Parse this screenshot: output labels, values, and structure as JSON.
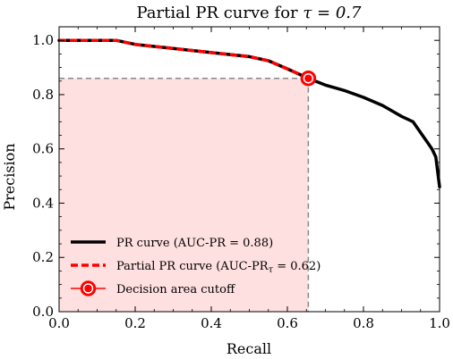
{
  "chart_data": {
    "type": "line",
    "title_prefix": "Partial PR curve for ",
    "title_math": "τ = 0.7",
    "xlabel": "Recall",
    "ylabel": "Precision",
    "xlim": [
      0.0,
      1.0
    ],
    "ylim": [
      0.0,
      1.05
    ],
    "x_ticks": [
      0.0,
      0.2,
      0.4,
      0.6,
      0.8,
      1.0
    ],
    "x_tick_labels": [
      "0.0",
      "0.2",
      "0.4",
      "0.6",
      "0.8",
      "1.0"
    ],
    "y_ticks": [
      0.0,
      0.2,
      0.4,
      0.6,
      0.8,
      1.0
    ],
    "y_tick_labels": [
      "0.0",
      "0.2",
      "0.4",
      "0.6",
      "0.8",
      "1.0"
    ],
    "grid": false,
    "legend_position": "lower-left",
    "series": [
      {
        "name": "PR curve (AUC-PR = 0.88)",
        "style": "solid",
        "color": "#000000",
        "x": [
          0.0,
          0.15,
          0.2,
          0.3,
          0.4,
          0.5,
          0.55,
          0.6,
          0.655,
          0.7,
          0.75,
          0.8,
          0.85,
          0.9,
          0.93,
          0.95,
          0.97,
          0.98,
          0.99,
          1.0
        ],
        "y": [
          1.0,
          1.0,
          0.985,
          0.97,
          0.955,
          0.94,
          0.925,
          0.895,
          0.86,
          0.835,
          0.815,
          0.79,
          0.76,
          0.72,
          0.7,
          0.66,
          0.62,
          0.6,
          0.57,
          0.46
        ]
      },
      {
        "name": "Partial PR curve (AUC-PR",
        "name_sub": "τ",
        "name_suffix": " = 0.62)",
        "style": "dashed",
        "color": "#ff0000",
        "x": [
          0.0,
          0.15,
          0.2,
          0.3,
          0.4,
          0.5,
          0.55,
          0.6,
          0.655
        ],
        "y": [
          1.0,
          1.0,
          0.985,
          0.97,
          0.955,
          0.94,
          0.925,
          0.895,
          0.86
        ]
      }
    ],
    "cutoff": {
      "name": "Decision area cutoff",
      "recall": 0.655,
      "precision": 0.86,
      "color": "#ff0000"
    },
    "shaded_area": {
      "color": "#ffe0e0",
      "x_max": 0.655
    }
  }
}
